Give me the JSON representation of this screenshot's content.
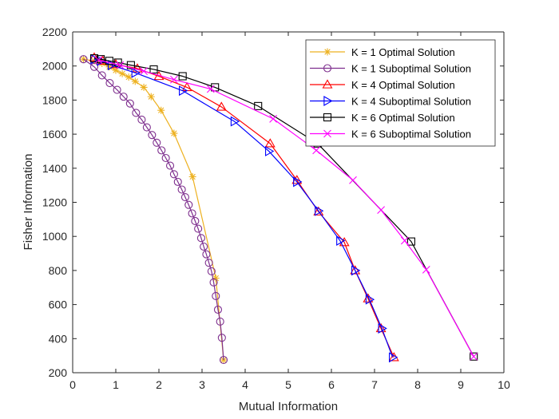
{
  "chart_data": {
    "type": "line",
    "title": "",
    "xlabel": "Mutual Information",
    "ylabel": "Fisher Information",
    "xlim": [
      0,
      10
    ],
    "ylim": [
      200,
      2200
    ],
    "xticks": [
      0,
      1,
      2,
      3,
      4,
      5,
      6,
      7,
      8,
      9,
      10
    ],
    "yticks": [
      200,
      400,
      600,
      800,
      1000,
      1200,
      1400,
      1600,
      1800,
      2000,
      2200
    ],
    "grid": false,
    "legend_position": "top-right",
    "series": [
      {
        "name": "K = 1 Optimal Solution",
        "color": "#EDB120",
        "marker": "star",
        "x": [
          0.25,
          0.5,
          0.68,
          0.85,
          1.0,
          1.15,
          1.3,
          1.45,
          1.65,
          1.82,
          2.05,
          2.35,
          2.78,
          3.32,
          3.5
        ],
        "y": [
          2040,
          2030,
          2015,
          1995,
          1975,
          1955,
          1935,
          1910,
          1875,
          1820,
          1740,
          1605,
          1350,
          755,
          275
        ]
      },
      {
        "name": "K = 1 Suboptimal Solution",
        "color": "#7E2F8E",
        "marker": "circle",
        "x": [
          0.25,
          0.5,
          0.68,
          0.86,
          1.03,
          1.18,
          1.33,
          1.47,
          1.6,
          1.72,
          1.84,
          1.95,
          2.06,
          2.16,
          2.26,
          2.35,
          2.44,
          2.53,
          2.61,
          2.69,
          2.77,
          2.84,
          2.91,
          2.98,
          3.04,
          3.1,
          3.16,
          3.22,
          3.27,
          3.32,
          3.37,
          3.42,
          3.46,
          3.5
        ],
        "y": [
          2040,
          1995,
          1945,
          1900,
          1860,
          1820,
          1780,
          1725,
          1685,
          1640,
          1595,
          1550,
          1505,
          1460,
          1415,
          1365,
          1320,
          1275,
          1230,
          1185,
          1135,
          1090,
          1045,
          990,
          940,
          895,
          845,
          795,
          730,
          650,
          570,
          500,
          405,
          275
        ]
      },
      {
        "name": "K = 4 Optimal Solution",
        "color": "#FF0000",
        "marker": "triangle-up",
        "x": [
          0.5,
          0.7,
          1.0,
          1.5,
          2.0,
          2.65,
          3.45,
          4.58,
          5.2,
          5.7,
          6.3,
          6.55,
          6.85,
          7.15,
          7.45
        ],
        "y": [
          2050,
          2030,
          2010,
          1985,
          1940,
          1875,
          1760,
          1545,
          1330,
          1145,
          965,
          800,
          635,
          460,
          290
        ]
      },
      {
        "name": "K = 4 Suboptimal Solution",
        "color": "#0000FF",
        "marker": "triangle-right",
        "x": [
          0.5,
          0.65,
          0.9,
          1.45,
          2.55,
          3.75,
          4.55,
          5.2,
          5.7,
          6.2,
          6.55,
          6.88,
          7.17,
          7.42
        ],
        "y": [
          2040,
          2030,
          2005,
          1960,
          1855,
          1675,
          1500,
          1320,
          1150,
          975,
          800,
          630,
          460,
          290
        ]
      },
      {
        "name": "K = 6 Optimal Solution",
        "color": "#000000",
        "marker": "square",
        "x": [
          0.5,
          0.65,
          0.85,
          1.05,
          1.35,
          1.88,
          2.55,
          3.3,
          4.3,
          5.68,
          7.85,
          9.3
        ],
        "y": [
          2045,
          2040,
          2030,
          2020,
          2005,
          1980,
          1940,
          1875,
          1765,
          1545,
          970,
          295
        ]
      },
      {
        "name": "K = 6 Suboptimal Solution",
        "color": "#FF00FF",
        "marker": "x",
        "x": [
          0.6,
          1.1,
          1.65,
          2.35,
          3.2,
          4.65,
          5.65,
          6.5,
          7.15,
          7.7,
          8.2,
          9.3
        ],
        "y": [
          2035,
          2005,
          1970,
          1920,
          1865,
          1690,
          1505,
          1330,
          1155,
          975,
          805,
          295
        ]
      }
    ]
  }
}
